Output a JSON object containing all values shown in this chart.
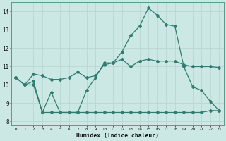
{
  "xlabel": "Humidex (Indice chaleur)",
  "background_color": "#cce8e4",
  "line_color": "#2e7d6e",
  "grid_color": "#b8d8d4",
  "ylim": [
    7.8,
    14.5
  ],
  "yticks": [
    8,
    9,
    10,
    11,
    12,
    13,
    14
  ],
  "line1": [
    10.4,
    10.0,
    10.2,
    8.5,
    9.6,
    8.5,
    8.5,
    8.5,
    9.7,
    10.4,
    11.2,
    11.2,
    11.8,
    12.7,
    13.2,
    14.2,
    13.8,
    13.3,
    13.2,
    11.0,
    9.9,
    9.7,
    9.1,
    8.6
  ],
  "line2": [
    10.4,
    10.0,
    10.6,
    10.5,
    10.3,
    10.3,
    10.4,
    10.7,
    10.4,
    10.5,
    11.1,
    11.2,
    11.4,
    11.0,
    11.3,
    11.4,
    11.3,
    11.3,
    11.3,
    11.1,
    11.0,
    11.0,
    11.0,
    10.95
  ],
  "line3": [
    10.4,
    10.0,
    10.0,
    8.5,
    8.5,
    8.5,
    8.5,
    8.5,
    8.5,
    8.5,
    8.5,
    8.5,
    8.5,
    8.5,
    8.5,
    8.5,
    8.5,
    8.5,
    8.5,
    8.5,
    8.5,
    8.5,
    8.6,
    8.6
  ]
}
